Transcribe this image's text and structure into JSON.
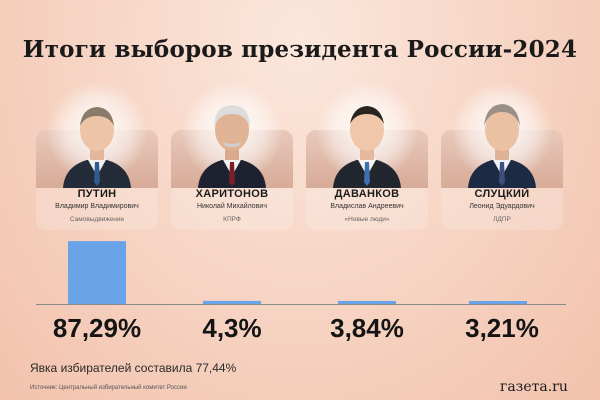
{
  "title": "Итоги выборов президента России-2024",
  "candidates": [
    {
      "surname": "ПУТИН",
      "given": "Владимир Владимирович",
      "party": "Самовыдвижение",
      "percent_label": "87,29%",
      "percent": 87.29
    },
    {
      "surname": "ХАРИТОНОВ",
      "given": "Николай Михайлович",
      "party": "КПРФ",
      "percent_label": "4,3%",
      "percent": 4.3
    },
    {
      "surname": "ДАВАНКОВ",
      "given": "Владислав Андреевич",
      "party": "«Новые люди»",
      "percent_label": "3,84%",
      "percent": 3.84
    },
    {
      "surname": "СЛУЦКИЙ",
      "given": "Леонид Эдуардович",
      "party": "ЛДПР",
      "percent_label": "3,21%",
      "percent": 3.21
    }
  ],
  "chart_data": {
    "type": "bar",
    "categories": [
      "ПУТИН",
      "ХАРИТОНОВ",
      "ДАВАНКОВ",
      "СЛУЦКИЙ"
    ],
    "values": [
      87.29,
      4.3,
      3.84,
      3.21
    ],
    "ylim": [
      0,
      100
    ],
    "bar_color": "#6aa3e8"
  },
  "turnout": "Явка избирателей составила 77,44%",
  "source": "Источник: Центральный избирательный комитет России",
  "brand": "газета.ru",
  "colors": {
    "bar": "#6aa3e8",
    "baseline": "#8a8a8a"
  }
}
